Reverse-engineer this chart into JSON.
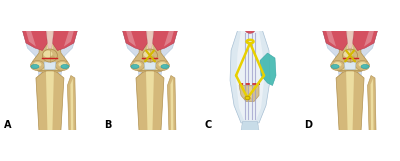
{
  "figsize": [
    4.0,
    1.61
  ],
  "dpi": 100,
  "background_color": "#ffffff",
  "panel_labels": [
    "A",
    "B",
    "C",
    "D"
  ],
  "label_fontsize": 7,
  "label_color": "#000000",
  "panel_contents": {
    "A": {
      "bg": "#f8f5ee",
      "muscle_color_main": "#d45060",
      "muscle_color_light": "#e8a0a8",
      "bone_color": "#d4b87a",
      "bone_light": "#ecdda0",
      "ligament_color": "#ccd8e8",
      "ligament_dark": "#a8c0d8",
      "cartilage_color": "#40b8b8",
      "line_color": "#cc2222",
      "pin_color": "#d4b800"
    },
    "C": {
      "bg": "#e0ecf5",
      "tendon_color": "#c8dce8",
      "tendon_edge": "#90b0c8",
      "cartilage_color": "#40b8b0",
      "bone_color": "#d4c090",
      "wire_color": "#e8d000",
      "fracture_color": "#cc2222",
      "pin_lines": "#9898c8",
      "muscle_color": "#d45060"
    }
  }
}
